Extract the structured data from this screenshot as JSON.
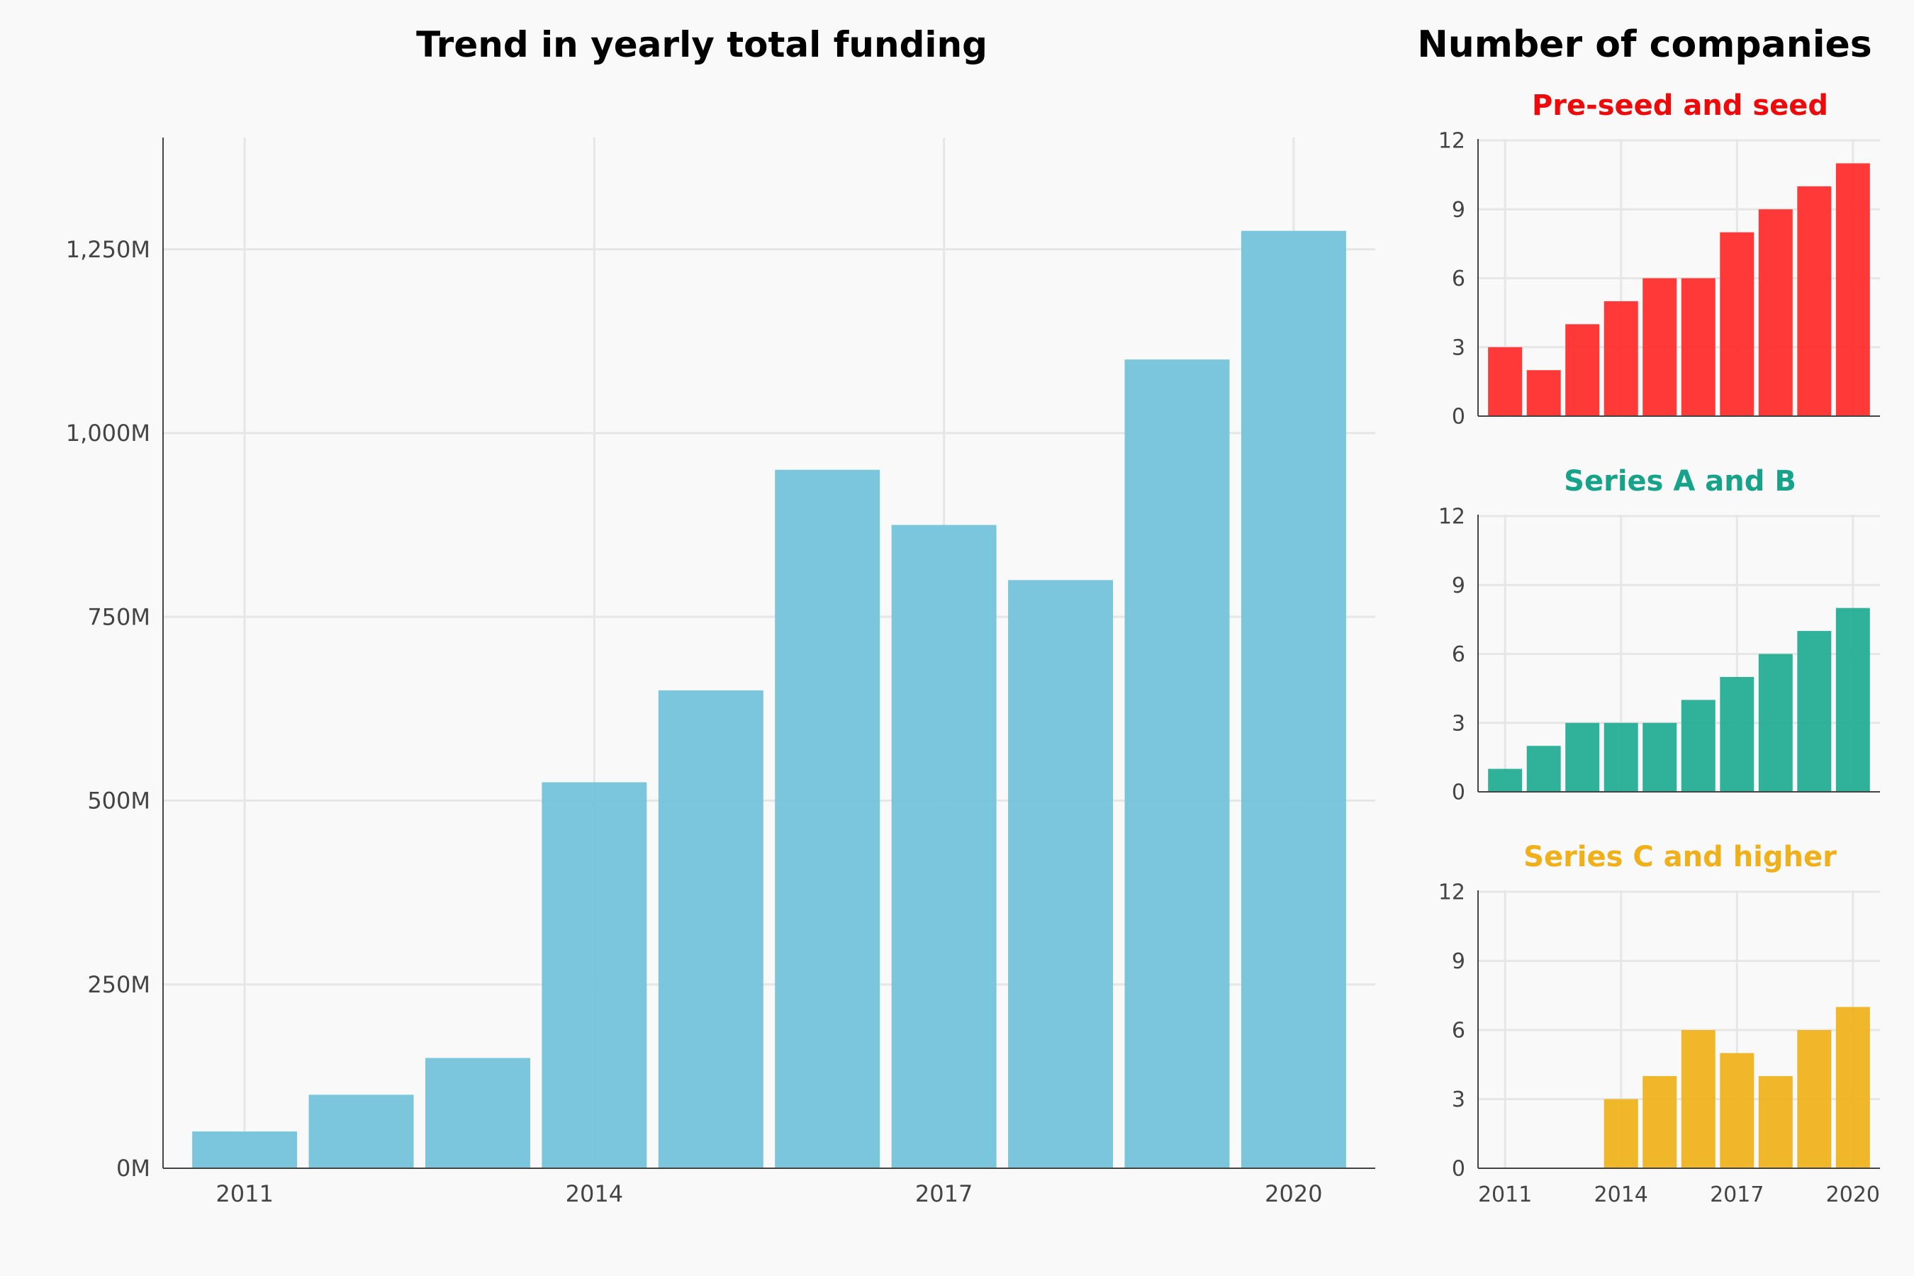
{
  "chart_data": [
    {
      "type": "bar",
      "title": "Trend in yearly total funding",
      "xlabel": "",
      "ylabel": "",
      "categories": [
        "2011",
        "2012",
        "2013",
        "2014",
        "2015",
        "2016",
        "2017",
        "2018",
        "2019",
        "2020"
      ],
      "values": [
        50,
        100,
        150,
        525,
        650,
        950,
        875,
        800,
        1100,
        1275
      ],
      "unit": "M",
      "ylim": [
        0,
        1400
      ],
      "yticks": [
        0,
        250,
        500,
        750,
        1000,
        1250
      ],
      "ytick_labels": [
        "0M",
        "250M",
        "500M",
        "750M",
        "1,000M",
        "1,250M"
      ],
      "xtick_labels": [
        "2011",
        "2014",
        "2017",
        "2020"
      ],
      "grid": true,
      "color": "#74c3da"
    },
    {
      "type": "bar",
      "group_title": "Number of companies",
      "title": "Pre-seed and seed",
      "title_color": "#ee0a0a",
      "categories": [
        "2011",
        "2012",
        "2013",
        "2014",
        "2015",
        "2016",
        "2017",
        "2018",
        "2019",
        "2020"
      ],
      "values": [
        3,
        2,
        4,
        5,
        6,
        6,
        8,
        9,
        10,
        11
      ],
      "ylim": [
        0,
        12
      ],
      "yticks": [
        0,
        3,
        6,
        9,
        12
      ],
      "grid": true,
      "color": "#ff2d2d"
    },
    {
      "type": "bar",
      "title": "Series A and B",
      "title_color": "#17a38a",
      "categories": [
        "2011",
        "2012",
        "2013",
        "2014",
        "2015",
        "2016",
        "2017",
        "2018",
        "2019",
        "2020"
      ],
      "values": [
        1,
        2,
        3,
        3,
        3,
        4,
        5,
        6,
        7,
        8
      ],
      "ylim": [
        0,
        12
      ],
      "yticks": [
        0,
        3,
        6,
        9,
        12
      ],
      "grid": true,
      "color": "#25ad95"
    },
    {
      "type": "bar",
      "title": "Series C and higher",
      "title_color": "#efb01a",
      "categories": [
        "2011",
        "2012",
        "2013",
        "2014",
        "2015",
        "2016",
        "2017",
        "2018",
        "2019",
        "2020"
      ],
      "values": [
        0,
        0,
        0,
        3,
        4,
        6,
        5,
        4,
        6,
        7
      ],
      "ylim": [
        0,
        12
      ],
      "yticks": [
        0,
        3,
        6,
        9,
        12
      ],
      "xtick_labels": [
        "2011",
        "2014",
        "2017",
        "2020"
      ],
      "grid": true,
      "color": "#efb320"
    }
  ]
}
